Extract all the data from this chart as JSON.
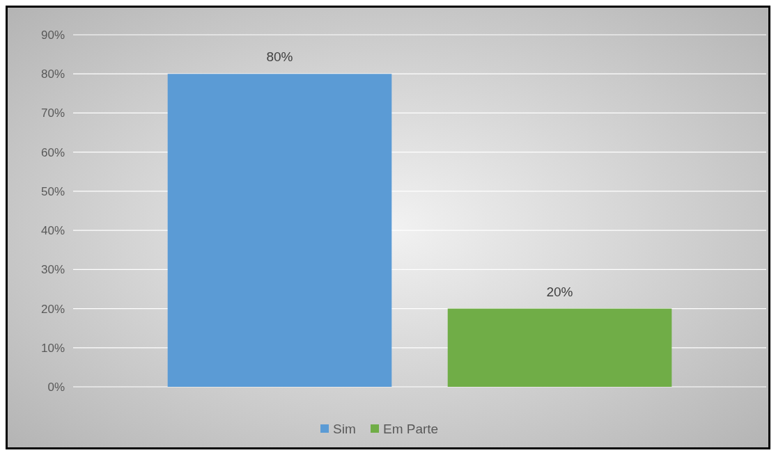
{
  "chart_data": {
    "type": "bar",
    "categories": [
      null
    ],
    "series": [
      {
        "name": "Sim",
        "color": "#5b9bd5",
        "values": [
          80
        ],
        "value_labels": [
          "80%"
        ]
      },
      {
        "name": "Em Parte",
        "color": "#70ad47",
        "values": [
          20
        ],
        "value_labels": [
          "20%"
        ]
      }
    ],
    "ylim": [
      0,
      90
    ],
    "yticks": [
      {
        "value": 0,
        "label": "0%"
      },
      {
        "value": 10,
        "label": "10%"
      },
      {
        "value": 20,
        "label": "20%"
      },
      {
        "value": 30,
        "label": "30%"
      },
      {
        "value": 40,
        "label": "40%"
      },
      {
        "value": 50,
        "label": "50%"
      },
      {
        "value": 60,
        "label": "60%"
      },
      {
        "value": 70,
        "label": "70%"
      },
      {
        "value": 80,
        "label": "80%"
      },
      {
        "value": 90,
        "label": "90%"
      }
    ],
    "grid": "y",
    "legend": "bottom"
  }
}
